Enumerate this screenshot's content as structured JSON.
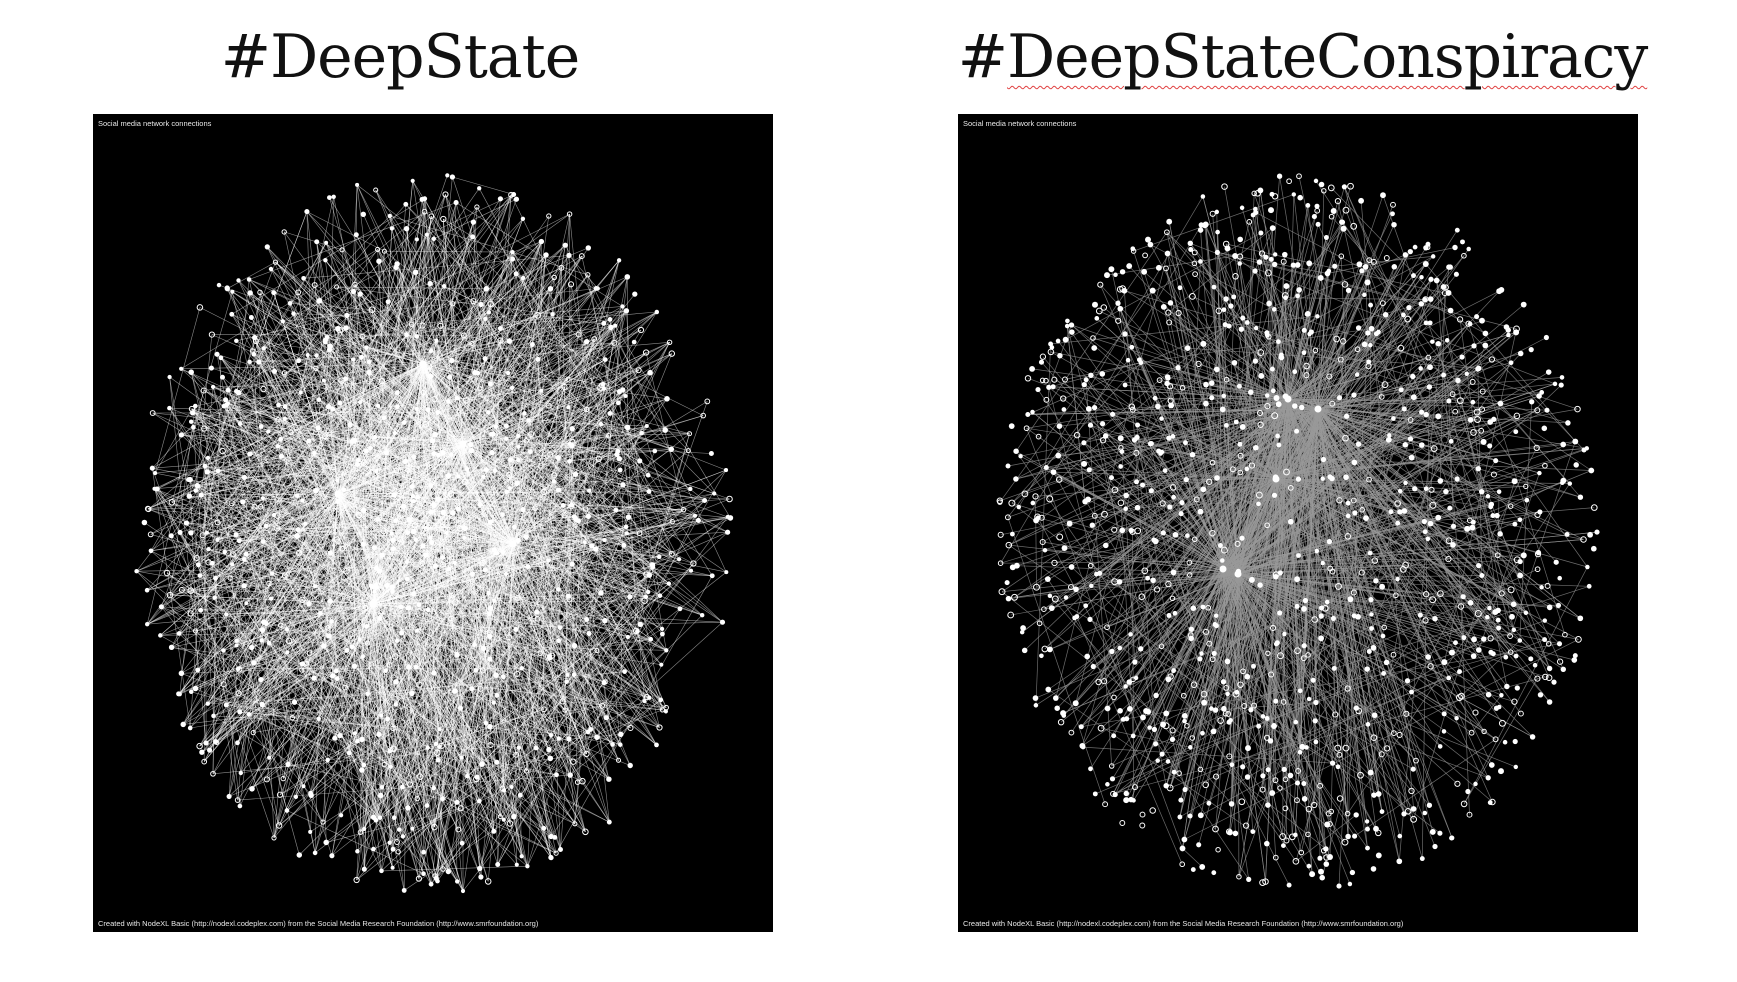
{
  "panels": [
    {
      "title_prefix": "#",
      "title_word": "DeepState",
      "frame_label": "Social media network connections",
      "credit": "Created with NodeXL Basic (http://nodexl.codeplex.com) from the Social Media Research Foundation (http://www.smrfoundation.org)",
      "style": {
        "edge_color": "#ffffff",
        "node_color": "#ffffff",
        "background": "#000000"
      }
    },
    {
      "title_prefix": "#",
      "title_word": "DeepStateConspiracy",
      "frame_label": "Social media network connections",
      "credit": "Created with NodeXL Basic (http://nodexl.codeplex.com) from the Social Media Research Foundation (http://www.smrfoundation.org)",
      "style": {
        "edge_color": "#9a9a9a",
        "node_color": "#ffffff",
        "background": "#000000"
      }
    }
  ]
}
